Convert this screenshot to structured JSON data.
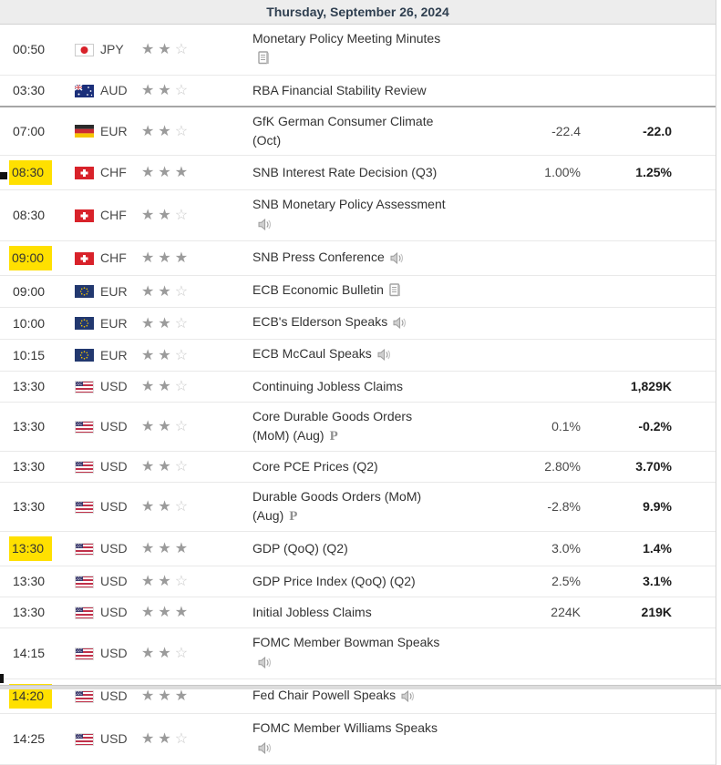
{
  "header": {
    "date_label": "Thursday, September 26, 2024"
  },
  "columns": {
    "time": "time",
    "currency": "currency",
    "importance": "importance",
    "event": "event",
    "forecast": "forecast",
    "previous": "previous"
  },
  "colors": {
    "highlight": "#ffe000",
    "star_filled": "#9b9b9b",
    "star_empty": "#c9c9c9",
    "header_bg": "#ededed",
    "header_text": "#2f3f50"
  },
  "icons": {
    "report": "report-icon",
    "speech": "speaker-icon",
    "preliminary": "preliminary-p-icon"
  },
  "rows": [
    {
      "time": "00:50",
      "currency": "JPY",
      "flag": "jp",
      "stars": 2,
      "event": "Monetary Policy Meeting Minutes",
      "icon": "report",
      "forecast": "",
      "previous": "",
      "highlight": false
    },
    {
      "time": "03:30",
      "currency": "AUD",
      "flag": "au",
      "stars": 2,
      "event": "RBA Financial Stability Review",
      "icon": null,
      "forecast": "",
      "previous": "",
      "highlight": false,
      "strong_divider": true
    },
    {
      "time": "07:00",
      "currency": "EUR",
      "flag": "de",
      "stars": 2,
      "event": "GfK German Consumer Climate (Oct)",
      "icon": null,
      "forecast": "-22.4",
      "previous": "-22.0",
      "highlight": false
    },
    {
      "time": "08:30",
      "currency": "CHF",
      "flag": "ch",
      "stars": 3,
      "event": "SNB Interest Rate Decision (Q3)",
      "icon": null,
      "forecast": "1.00%",
      "previous": "1.25%",
      "highlight": true
    },
    {
      "time": "08:30",
      "currency": "CHF",
      "flag": "ch",
      "stars": 2,
      "event": "SNB Monetary Policy Assessment",
      "icon": "speech",
      "forecast": "",
      "previous": "",
      "highlight": false
    },
    {
      "time": "09:00",
      "currency": "CHF",
      "flag": "ch",
      "stars": 3,
      "event": "SNB Press Conference",
      "icon": "speech",
      "forecast": "",
      "previous": "",
      "highlight": true
    },
    {
      "time": "09:00",
      "currency": "EUR",
      "flag": "eu",
      "stars": 2,
      "event": "ECB Economic Bulletin",
      "icon": "report",
      "forecast": "",
      "previous": "",
      "highlight": false
    },
    {
      "time": "10:00",
      "currency": "EUR",
      "flag": "eu",
      "stars": 2,
      "event": "ECB's Elderson Speaks",
      "icon": "speech",
      "forecast": "",
      "previous": "",
      "highlight": false
    },
    {
      "time": "10:15",
      "currency": "EUR",
      "flag": "eu",
      "stars": 2,
      "event": "ECB McCaul Speaks",
      "icon": "speech",
      "forecast": "",
      "previous": "",
      "highlight": false
    },
    {
      "time": "13:30",
      "currency": "USD",
      "flag": "us",
      "stars": 2,
      "event": "Continuing Jobless Claims",
      "icon": null,
      "forecast": "",
      "previous": "1,829K",
      "highlight": false
    },
    {
      "time": "13:30",
      "currency": "USD",
      "flag": "us",
      "stars": 2,
      "event": "Core Durable Goods Orders (MoM) (Aug)",
      "icon": "preliminary",
      "forecast": "0.1%",
      "previous": "-0.2%",
      "highlight": false
    },
    {
      "time": "13:30",
      "currency": "USD",
      "flag": "us",
      "stars": 2,
      "event": "Core PCE Prices (Q2)",
      "icon": null,
      "forecast": "2.80%",
      "previous": "3.70%",
      "highlight": false
    },
    {
      "time": "13:30",
      "currency": "USD",
      "flag": "us",
      "stars": 2,
      "event": "Durable Goods Orders (MoM) (Aug)",
      "icon": "preliminary",
      "forecast": "-2.8%",
      "previous": "9.9%",
      "highlight": false
    },
    {
      "time": "13:30",
      "currency": "USD",
      "flag": "us",
      "stars": 3,
      "event": "GDP (QoQ) (Q2)",
      "icon": null,
      "forecast": "3.0%",
      "previous": "1.4%",
      "highlight": true
    },
    {
      "time": "13:30",
      "currency": "USD",
      "flag": "us",
      "stars": 2,
      "event": "GDP Price Index (QoQ) (Q2)",
      "icon": null,
      "forecast": "2.5%",
      "previous": "3.1%",
      "highlight": false
    },
    {
      "time": "13:30",
      "currency": "USD",
      "flag": "us",
      "stars": 3,
      "event": "Initial Jobless Claims",
      "icon": null,
      "forecast": "224K",
      "previous": "219K",
      "highlight": false
    },
    {
      "time": "14:15",
      "currency": "USD",
      "flag": "us",
      "stars": 2,
      "event": "FOMC Member Bowman Speaks",
      "icon": "speech",
      "forecast": "",
      "previous": "",
      "highlight": false
    },
    {
      "time": "14:20",
      "currency": "USD",
      "flag": "us",
      "stars": 3,
      "event": "Fed Chair Powell Speaks",
      "icon": "speech",
      "forecast": "",
      "previous": "",
      "highlight": true
    },
    {
      "time": "14:25",
      "currency": "USD",
      "flag": "us",
      "stars": 2,
      "event": "FOMC Member Williams Speaks",
      "icon": "speech",
      "forecast": "",
      "previous": "",
      "highlight": false
    }
  ]
}
